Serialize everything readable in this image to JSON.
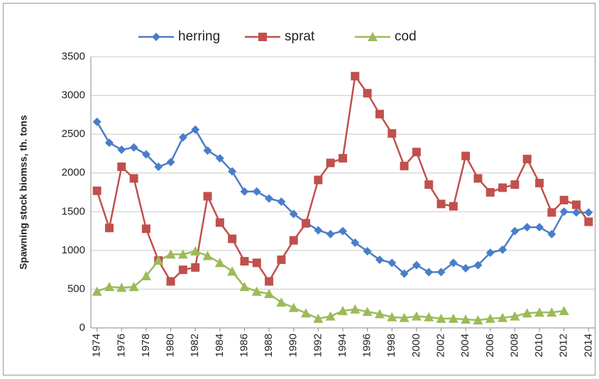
{
  "chart_data": {
    "type": "line",
    "y_label": "Spawning stock biomss, th. tons",
    "x": [
      1974,
      1975,
      1976,
      1977,
      1978,
      1979,
      1980,
      1981,
      1982,
      1983,
      1984,
      1985,
      1986,
      1987,
      1988,
      1989,
      1990,
      1991,
      1992,
      1993,
      1994,
      1995,
      1996,
      1997,
      1998,
      1999,
      2000,
      2001,
      2002,
      2003,
      2004,
      2005,
      2006,
      2007,
      2008,
      2009,
      2010,
      2011,
      2012,
      2013,
      2014
    ],
    "series": [
      {
        "name": "herring",
        "color": "#4a7dc9",
        "marker": "diamond",
        "values": [
          2660,
          2390,
          2300,
          2330,
          2240,
          2080,
          2140,
          2460,
          2560,
          2290,
          2190,
          2020,
          1760,
          1760,
          1670,
          1630,
          1470,
          1360,
          1260,
          1210,
          1250,
          1100,
          990,
          880,
          840,
          700,
          810,
          720,
          720,
          840,
          770,
          810,
          970,
          1010,
          1250,
          1300,
          1300,
          1210,
          1500,
          1490,
          1490
        ]
      },
      {
        "name": "sprat",
        "color": "#c0504d",
        "marker": "square",
        "values": [
          1770,
          1290,
          2080,
          1930,
          1280,
          870,
          600,
          750,
          780,
          1700,
          1360,
          1150,
          860,
          840,
          600,
          880,
          1130,
          1350,
          1910,
          2130,
          2190,
          3250,
          3030,
          2760,
          2510,
          2090,
          2270,
          1850,
          1600,
          1570,
          2220,
          1930,
          1750,
          1810,
          1850,
          2180,
          1870,
          1490,
          1650,
          1590,
          1370
        ]
      },
      {
        "name": "cod",
        "color": "#9bbb59",
        "marker": "triangle",
        "values": [
          470,
          530,
          520,
          530,
          670,
          870,
          950,
          950,
          990,
          930,
          840,
          730,
          530,
          470,
          440,
          330,
          260,
          190,
          120,
          150,
          220,
          240,
          210,
          180,
          140,
          130,
          150,
          140,
          120,
          120,
          110,
          100,
          120,
          130,
          150,
          190,
          200,
          200,
          220,
          null,
          null
        ]
      }
    ],
    "xlim": [
      1973.5,
      2014.5
    ],
    "xticks": [
      1974,
      1976,
      1978,
      1980,
      1982,
      1984,
      1986,
      1988,
      1990,
      1992,
      1994,
      1996,
      1998,
      2000,
      2002,
      2004,
      2006,
      2008,
      2010,
      2012,
      2014
    ],
    "ylim": [
      0,
      3500
    ],
    "yticks": [
      0,
      500,
      1000,
      1500,
      2000,
      2500,
      3000,
      3500
    ],
    "grid": true,
    "legend": "top"
  }
}
